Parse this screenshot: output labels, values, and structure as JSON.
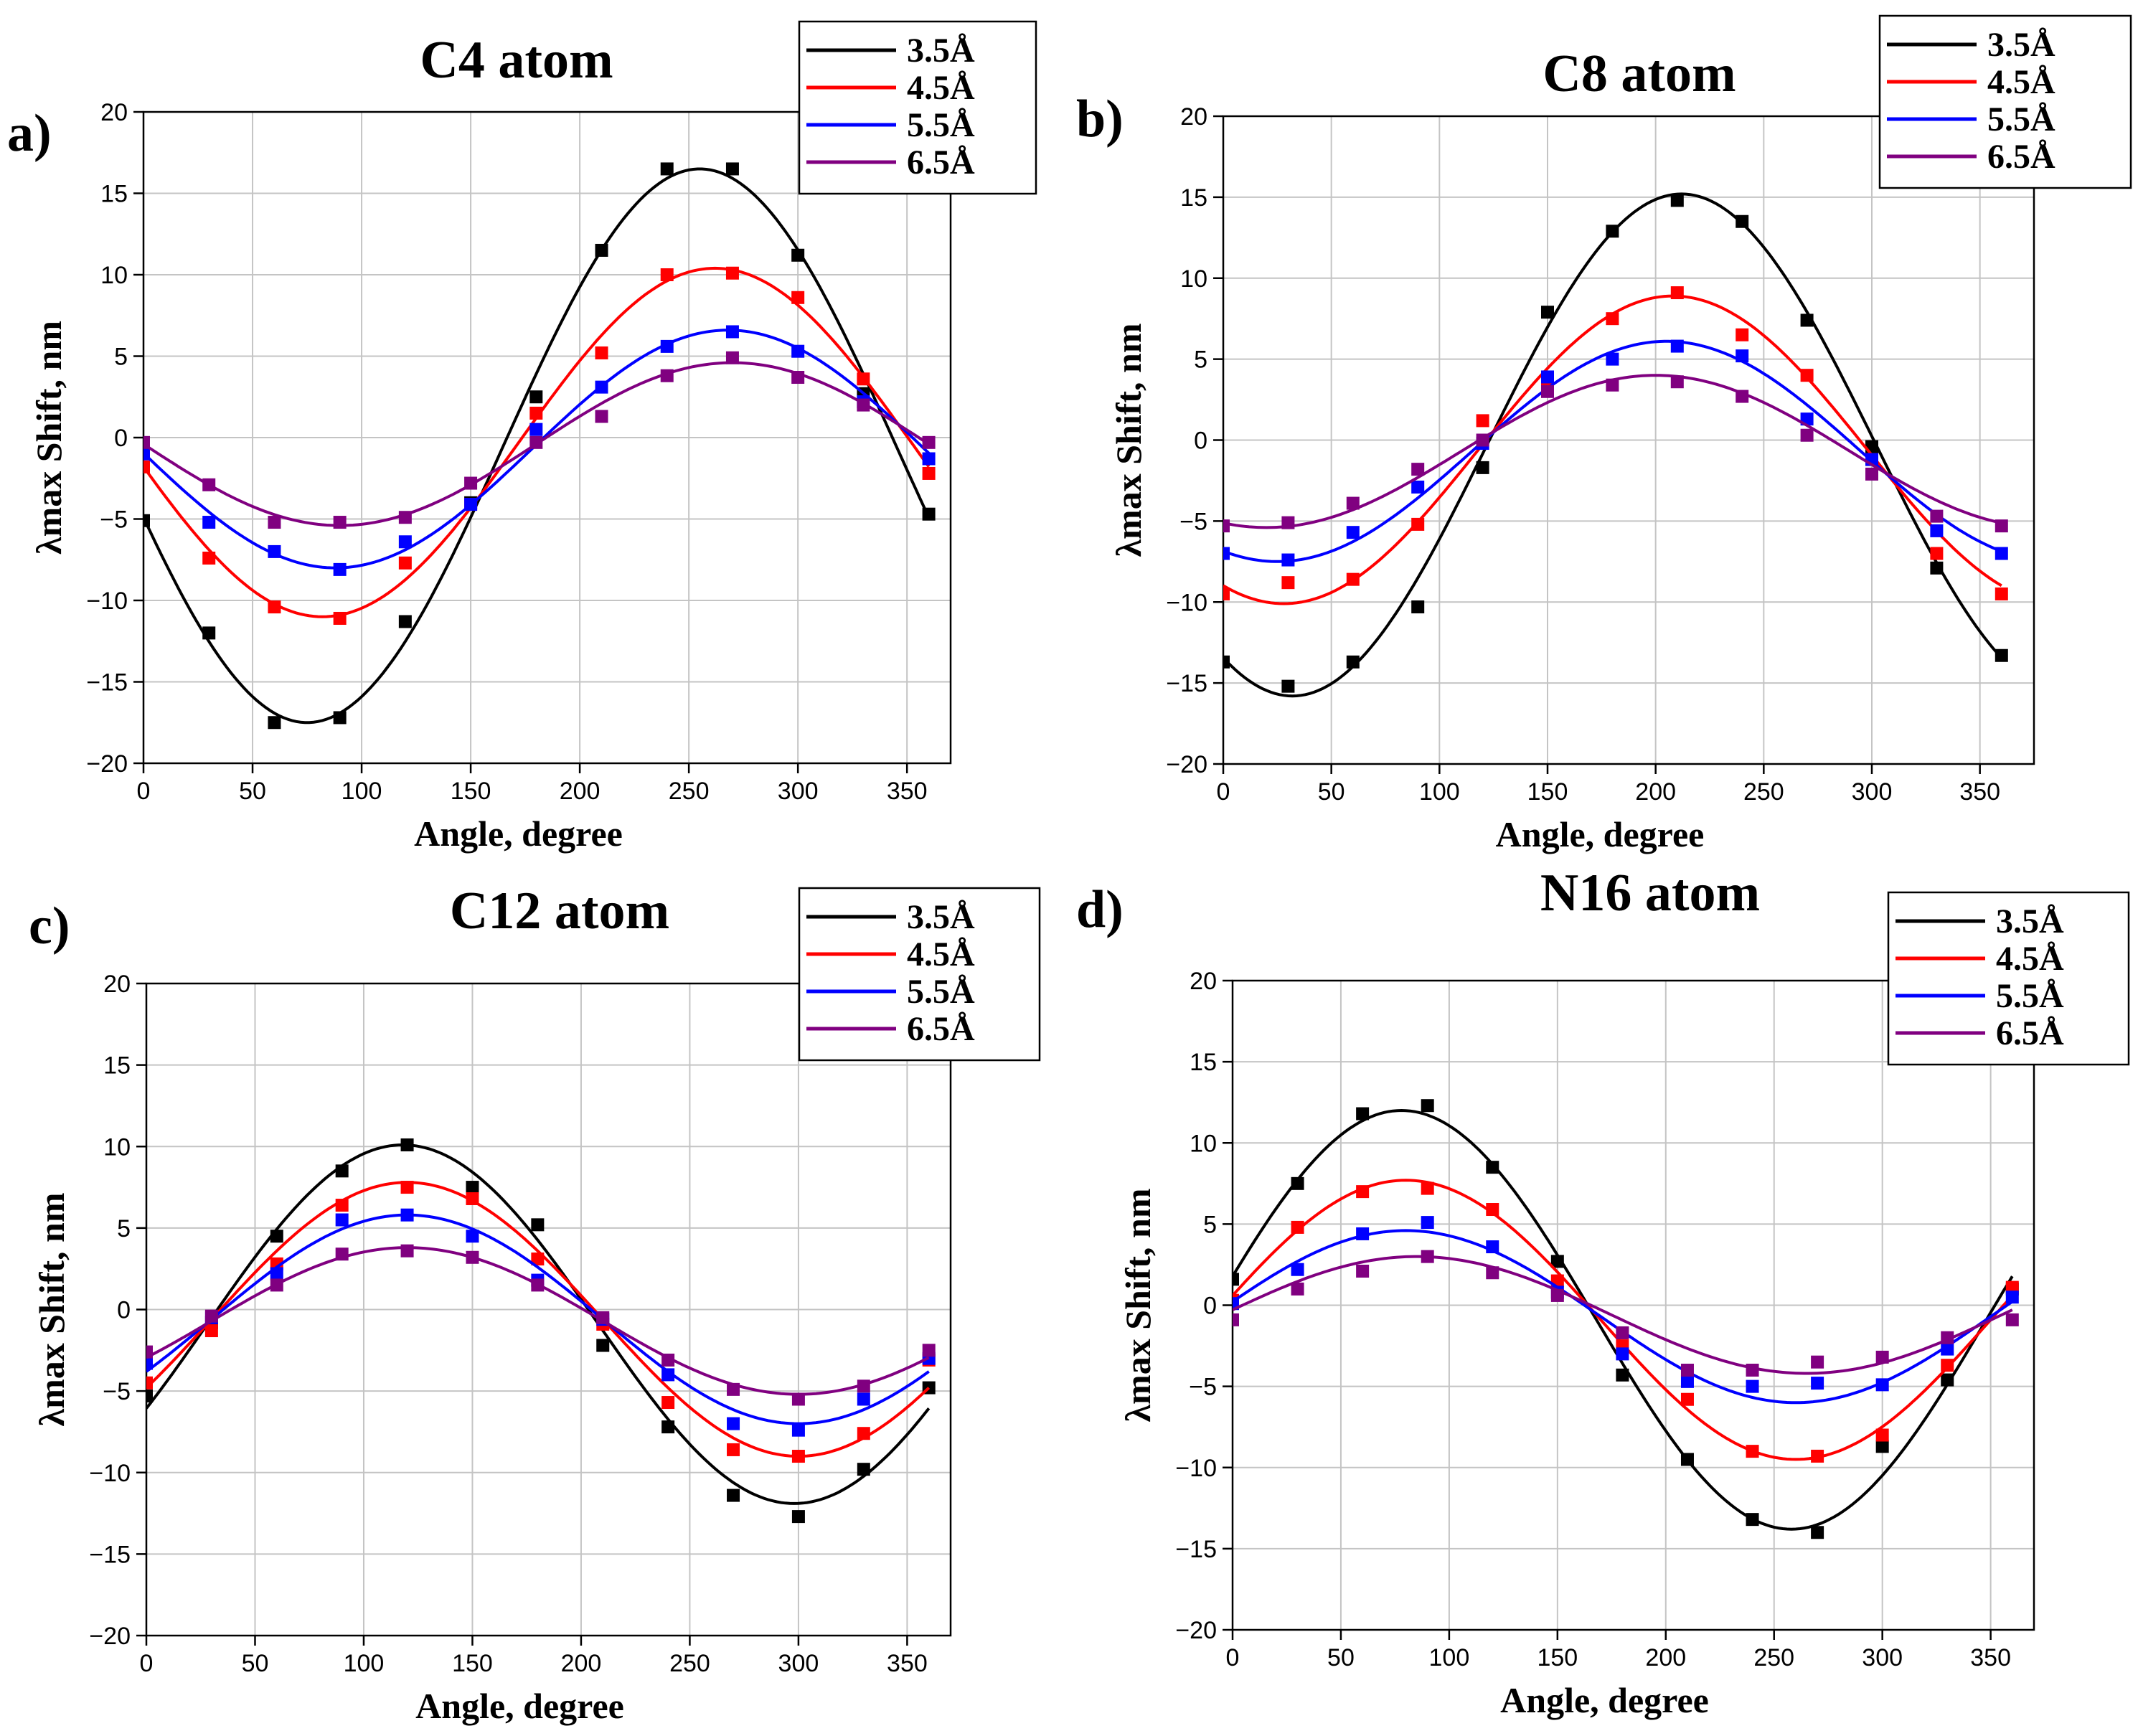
{
  "chart_data": [
    {
      "type": "scatter",
      "panel_label": "a)",
      "title": "C4 atom",
      "xlabel": "Angle, degree",
      "ylabel": "λmax Shift, nm",
      "xlim": [
        0,
        370
      ],
      "ylim": [
        -20,
        20
      ],
      "xticks": [
        0,
        50,
        100,
        150,
        200,
        250,
        300,
        350
      ],
      "yticks": [
        -20,
        -15,
        -10,
        -5,
        0,
        5,
        10,
        15,
        20
      ],
      "grid": true,
      "legend_position": "top-right",
      "x": [
        0,
        30,
        60,
        90,
        120,
        150,
        180,
        210,
        240,
        270,
        300,
        330,
        360
      ],
      "series": [
        {
          "name": "3.5Å",
          "color": "#000000",
          "values": [
            -5.1,
            -12.0,
            -17.5,
            -17.2,
            -11.3,
            -4.0,
            2.5,
            11.5,
            16.5,
            16.5,
            11.2,
            2.7,
            -4.7
          ],
          "fit": {
            "amplitude": 17.0,
            "center": 255,
            "offset": -0.5
          }
        },
        {
          "name": "4.5Å",
          "color": "#ff0000",
          "values": [
            -1.8,
            -7.4,
            -10.4,
            -11.1,
            -7.7,
            -4.1,
            1.5,
            5.2,
            10.0,
            10.1,
            8.6,
            3.6,
            -2.2
          ],
          "fit": {
            "amplitude": 10.7,
            "center": 262,
            "offset": -0.3
          }
        },
        {
          "name": "5.5Å",
          "color": "#0000ff",
          "values": [
            -1.0,
            -5.2,
            -7.0,
            -8.1,
            -6.4,
            -4.1,
            0.5,
            3.1,
            5.6,
            6.5,
            5.3,
            2.2,
            -1.3
          ],
          "fit": {
            "amplitude": 7.3,
            "center": 268,
            "offset": -0.7
          }
        },
        {
          "name": "6.5Å",
          "color": "#800080",
          "values": [
            -0.3,
            -2.9,
            -5.2,
            -5.2,
            -4.9,
            -2.8,
            -0.3,
            1.3,
            3.8,
            4.9,
            3.7,
            2.0,
            -0.3
          ],
          "fit": {
            "amplitude": 5.0,
            "center": 270,
            "offset": -0.4
          }
        }
      ]
    },
    {
      "type": "scatter",
      "panel_label": "b)",
      "title": "C8 atom",
      "xlabel": "Angle, degree",
      "ylabel": "λmax Shift, nm",
      "xlim": [
        0,
        375
      ],
      "ylim": [
        -20,
        20
      ],
      "xticks": [
        0,
        50,
        100,
        150,
        200,
        250,
        300,
        350
      ],
      "yticks": [
        -20,
        -15,
        -10,
        -5,
        0,
        5,
        10,
        15,
        20
      ],
      "grid": true,
      "legend_position": "top-right",
      "x": [
        0,
        30,
        60,
        90,
        120,
        150,
        180,
        210,
        240,
        270,
        300,
        330,
        360
      ],
      "series": [
        {
          "name": "3.5Å",
          "color": "#000000",
          "values": [
            -13.7,
            -15.2,
            -13.7,
            -10.3,
            -1.7,
            7.9,
            12.9,
            14.8,
            13.5,
            7.4,
            -0.4,
            -7.9,
            -13.3
          ],
          "fit": {
            "amplitude": 15.5,
            "center": 212,
            "offset": -0.3
          }
        },
        {
          "name": "4.5Å",
          "color": "#ff0000",
          "values": [
            -9.5,
            -8.8,
            -8.6,
            -5.2,
            1.2,
            3.5,
            7.5,
            9.1,
            6.5,
            4.0,
            -1.2,
            -7.0,
            -9.5
          ],
          "fit": {
            "amplitude": 9.5,
            "center": 208,
            "offset": -0.6
          }
        },
        {
          "name": "5.5Å",
          "color": "#0000ff",
          "values": [
            -7.0,
            -7.4,
            -5.7,
            -2.9,
            -0.2,
            3.9,
            5.0,
            5.8,
            5.2,
            1.3,
            -1.2,
            -5.6,
            -7.0
          ],
          "fit": {
            "amplitude": 6.8,
            "center": 205,
            "offset": -0.7
          }
        },
        {
          "name": "6.5Å",
          "color": "#800080",
          "values": [
            -5.3,
            -5.1,
            -3.9,
            -1.8,
            0.0,
            3.0,
            3.4,
            3.6,
            2.7,
            0.3,
            -2.1,
            -4.7,
            -5.3
          ],
          "fit": {
            "amplitude": 4.7,
            "center": 200,
            "offset": -0.7
          }
        }
      ]
    },
    {
      "type": "scatter",
      "panel_label": "c)",
      "title": "C12 atom",
      "xlabel": "Angle, degree",
      "ylabel": "λmax Shift, nm",
      "xlim": [
        0,
        370
      ],
      "ylim": [
        -20,
        20
      ],
      "xticks": [
        0,
        50,
        100,
        150,
        200,
        250,
        300,
        350
      ],
      "yticks": [
        -20,
        -15,
        -10,
        -5,
        0,
        5,
        10,
        15,
        20
      ],
      "grid": true,
      "legend_position": "top-right",
      "x": [
        0,
        30,
        60,
        90,
        120,
        150,
        180,
        210,
        240,
        270,
        300,
        330,
        360
      ],
      "series": [
        {
          "name": "3.5Å",
          "color": "#000000",
          "values": [
            -5.3,
            -0.8,
            4.5,
            8.5,
            10.1,
            7.5,
            5.2,
            -2.2,
            -7.2,
            -11.4,
            -12.7,
            -9.8,
            -4.8
          ],
          "fit": {
            "amplitude": 11.0,
            "center": 118,
            "offset": -0.9
          }
        },
        {
          "name": "4.5Å",
          "color": "#ff0000",
          "values": [
            -4.5,
            -1.3,
            2.8,
            6.4,
            7.5,
            6.8,
            3.1,
            -0.9,
            -5.7,
            -8.6,
            -9.0,
            -7.6,
            -3.1
          ],
          "fit": {
            "amplitude": 8.4,
            "center": 120,
            "offset": -0.6
          }
        },
        {
          "name": "5.5Å",
          "color": "#0000ff",
          "values": [
            -3.3,
            -0.5,
            2.2,
            5.5,
            5.8,
            4.5,
            1.8,
            -0.6,
            -4.0,
            -7.0,
            -7.4,
            -5.5,
            -3.0
          ],
          "fit": {
            "amplitude": 6.4,
            "center": 120,
            "offset": -0.6
          }
        },
        {
          "name": "6.5Å",
          "color": "#800080",
          "values": [
            -2.6,
            -0.4,
            1.5,
            3.4,
            3.6,
            3.2,
            1.5,
            -0.5,
            -3.1,
            -4.9,
            -5.5,
            -4.7,
            -2.5
          ],
          "fit": {
            "amplitude": 4.5,
            "center": 120,
            "offset": -0.7
          }
        }
      ]
    },
    {
      "type": "scatter",
      "panel_label": "d)",
      "title": "N16 atom",
      "xlabel": "Angle, degree",
      "ylabel": "λmax Shift, nm",
      "xlim": [
        0,
        370
      ],
      "ylim": [
        -20,
        20
      ],
      "xticks": [
        0,
        50,
        100,
        150,
        200,
        250,
        300,
        350
      ],
      "yticks": [
        -20,
        -15,
        -10,
        -5,
        0,
        5,
        10,
        15,
        20
      ],
      "grid": true,
      "legend_position": "top-right",
      "x": [
        0,
        30,
        60,
        90,
        120,
        150,
        180,
        210,
        240,
        270,
        300,
        330,
        360
      ],
      "series": [
        {
          "name": "3.5Å",
          "color": "#000000",
          "values": [
            1.6,
            7.5,
            11.8,
            12.3,
            8.5,
            2.7,
            -4.3,
            -9.5,
            -13.2,
            -14.0,
            -8.7,
            -4.6,
            1.0
          ],
          "fit": {
            "amplitude": 12.9,
            "center": 78,
            "offset": -0.9
          }
        },
        {
          "name": "4.5Å",
          "color": "#ff0000",
          "values": [
            0.3,
            4.8,
            7.0,
            7.2,
            5.9,
            1.5,
            -2.5,
            -5.8,
            -9.0,
            -9.3,
            -8.0,
            -3.7,
            1.1
          ],
          "fit": {
            "amplitude": 8.6,
            "center": 80,
            "offset": -0.9
          }
        },
        {
          "name": "5.5Å",
          "color": "#0000ff",
          "values": [
            0.1,
            2.2,
            4.4,
            5.1,
            3.6,
            0.8,
            -3.0,
            -4.7,
            -5.0,
            -4.8,
            -4.9,
            -2.7,
            0.5
          ],
          "fit": {
            "amplitude": 5.3,
            "center": 80,
            "offset": -0.7
          }
        },
        {
          "name": "6.5Å",
          "color": "#800080",
          "values": [
            -0.9,
            1.0,
            2.1,
            3.0,
            2.0,
            0.6,
            -1.7,
            -4.0,
            -4.0,
            -3.5,
            -3.2,
            -2.0,
            -0.9
          ],
          "fit": {
            "amplitude": 3.6,
            "center": 85,
            "offset": -0.6
          }
        }
      ]
    }
  ]
}
